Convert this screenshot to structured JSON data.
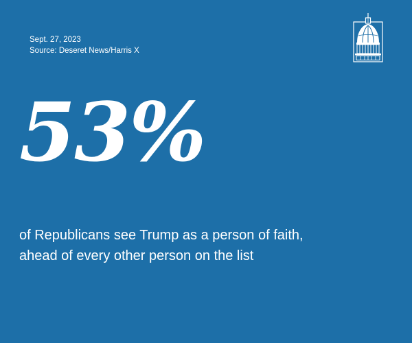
{
  "meta": {
    "date": "Sept. 27, 2023",
    "source": "Source: Deseret News/Harris X"
  },
  "logo": {
    "icon": "capitol-dome-icon"
  },
  "stat": {
    "value": "53%"
  },
  "caption": {
    "line1": "of Republicans see Trump as a person of faith,",
    "line2": "ahead of every other person on the list"
  },
  "colors": {
    "background": "#1d6fa8",
    "text": "#ffffff"
  }
}
